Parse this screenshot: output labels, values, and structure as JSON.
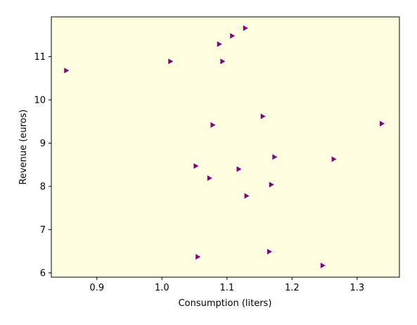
{
  "chart_data": {
    "type": "scatter",
    "title": "",
    "xlabel": "Consumption (liters)",
    "ylabel": "Revenue (euros)",
    "xlim": [
      0.83,
      1.365
    ],
    "ylim": [
      5.9,
      11.92
    ],
    "xticks": [
      0.9,
      1.0,
      1.1,
      1.2,
      1.3
    ],
    "xtick_labels": [
      "0.9",
      "1.0",
      "1.1",
      "1.2",
      "1.3"
    ],
    "yticks": [
      6,
      7,
      8,
      9,
      10,
      11
    ],
    "ytick_labels": [
      "6",
      "7",
      "8",
      "9",
      "10",
      "11"
    ],
    "grid": false,
    "marker": "triangle-right",
    "marker_color": "#800080",
    "background_color": "#FFFEE0",
    "points": [
      {
        "x": 0.853,
        "y": 10.68
      },
      {
        "x": 1.013,
        "y": 10.89
      },
      {
        "x": 1.088,
        "y": 11.29
      },
      {
        "x": 1.093,
        "y": 10.89
      },
      {
        "x": 1.108,
        "y": 11.48
      },
      {
        "x": 1.128,
        "y": 11.66
      },
      {
        "x": 1.078,
        "y": 9.42
      },
      {
        "x": 1.155,
        "y": 9.62
      },
      {
        "x": 1.338,
        "y": 9.45
      },
      {
        "x": 1.264,
        "y": 8.63
      },
      {
        "x": 1.173,
        "y": 8.68
      },
      {
        "x": 1.052,
        "y": 8.47
      },
      {
        "x": 1.118,
        "y": 8.4
      },
      {
        "x": 1.073,
        "y": 8.19
      },
      {
        "x": 1.168,
        "y": 8.04
      },
      {
        "x": 1.13,
        "y": 7.78
      },
      {
        "x": 1.055,
        "y": 6.37
      },
      {
        "x": 1.165,
        "y": 6.49
      },
      {
        "x": 1.247,
        "y": 6.17
      }
    ]
  }
}
